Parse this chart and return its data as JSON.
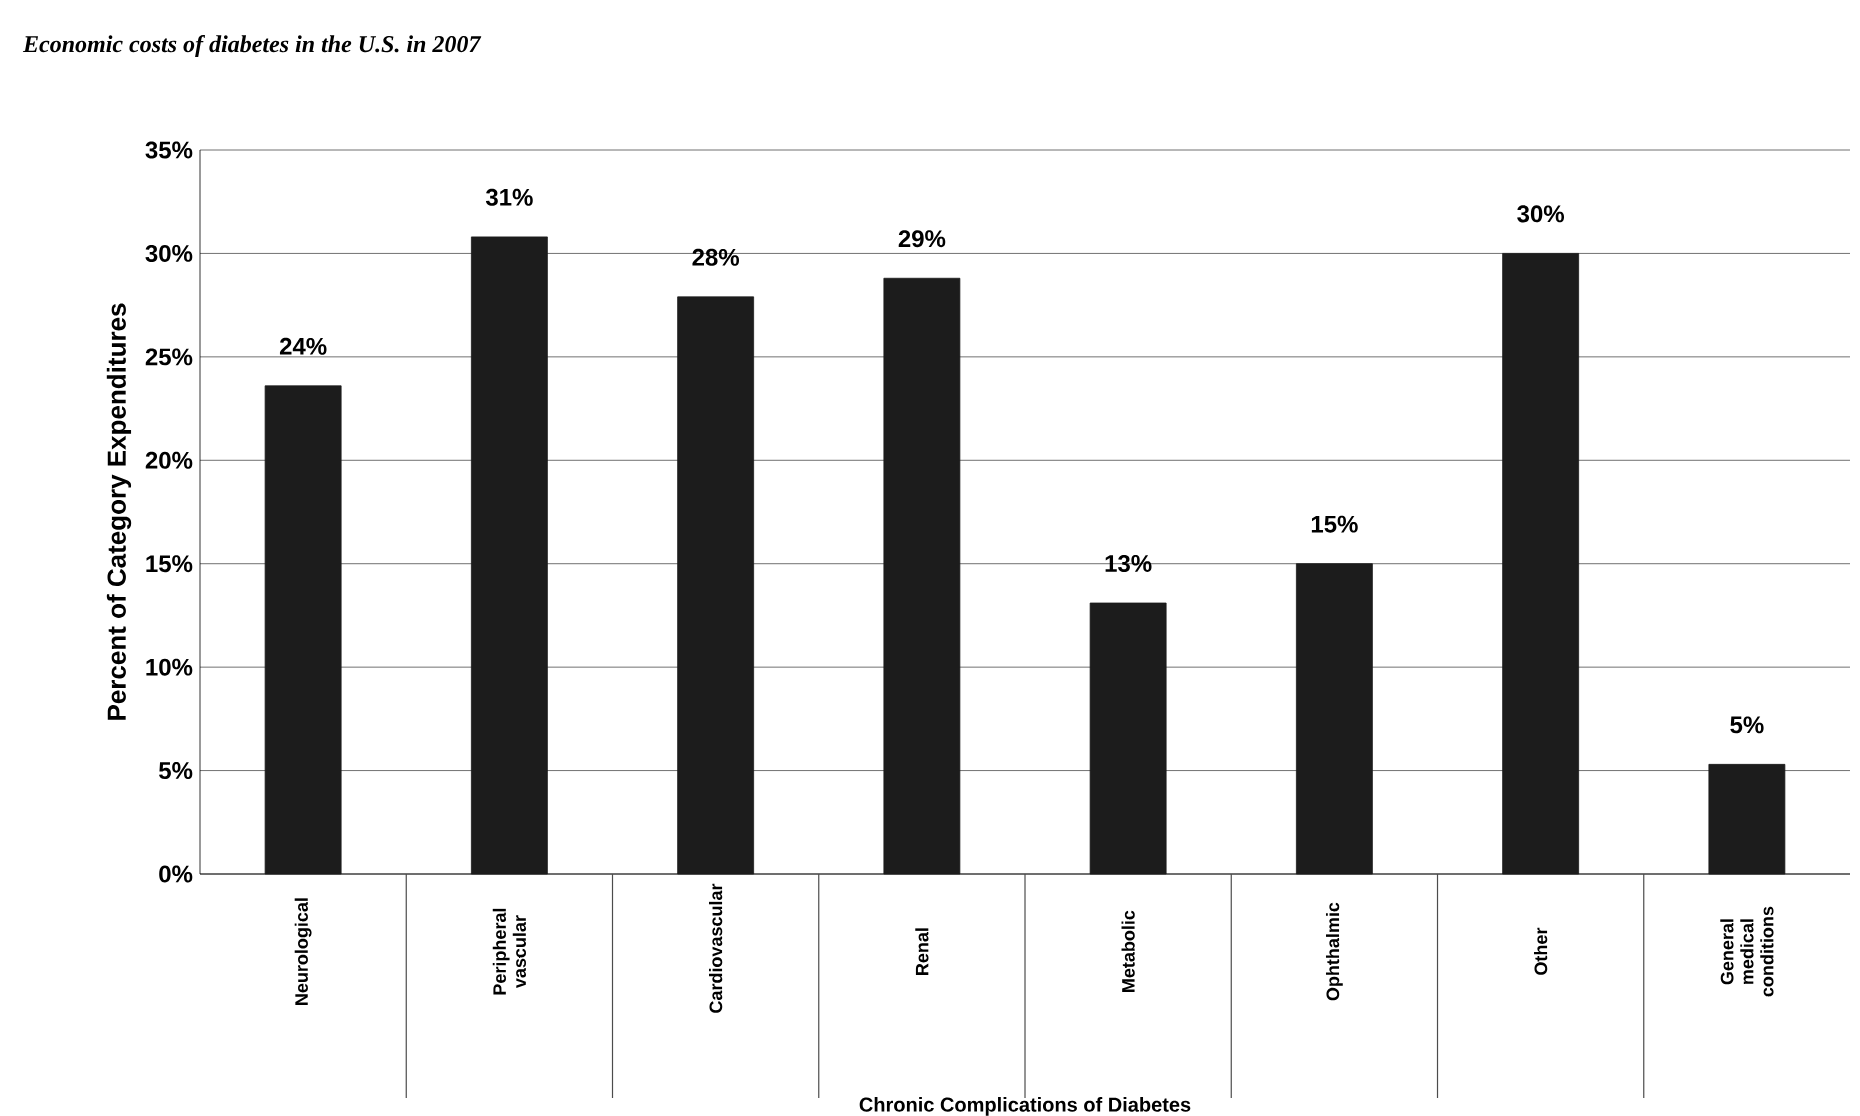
{
  "chart_data": {
    "type": "bar",
    "title": "Economic costs of diabetes in the U.S. in 2007",
    "xlabel": "Chronic Complications of Diabetes",
    "ylabel": "Percent of  Category Expenditures",
    "categories": [
      "Neurological",
      "Peripheral vascular",
      "Cardiovascular",
      "Renal",
      "Metabolic",
      "Ophthalmic",
      "Other",
      "General medical conditions"
    ],
    "values": [
      23.6,
      30.8,
      27.9,
      28.8,
      13.1,
      15.0,
      30.0,
      5.3
    ],
    "value_labels": [
      "24%",
      "31%",
      "28%",
      "29%",
      "13%",
      "15%",
      "30%",
      "5%"
    ],
    "color": "#1c1c1c",
    "ylim": [
      0,
      35
    ],
    "yticks": [
      {
        "value": 0,
        "label": "0%"
      },
      {
        "value": 5,
        "label": "5%"
      },
      {
        "value": 10,
        "label": "10%"
      },
      {
        "value": 15,
        "label": "15%"
      },
      {
        "value": 20,
        "label": "20%"
      },
      {
        "value": 25,
        "label": "25%"
      },
      {
        "value": 30,
        "label": "30%"
      },
      {
        "value": 35,
        "label": "35%"
      }
    ],
    "grid": "y"
  }
}
